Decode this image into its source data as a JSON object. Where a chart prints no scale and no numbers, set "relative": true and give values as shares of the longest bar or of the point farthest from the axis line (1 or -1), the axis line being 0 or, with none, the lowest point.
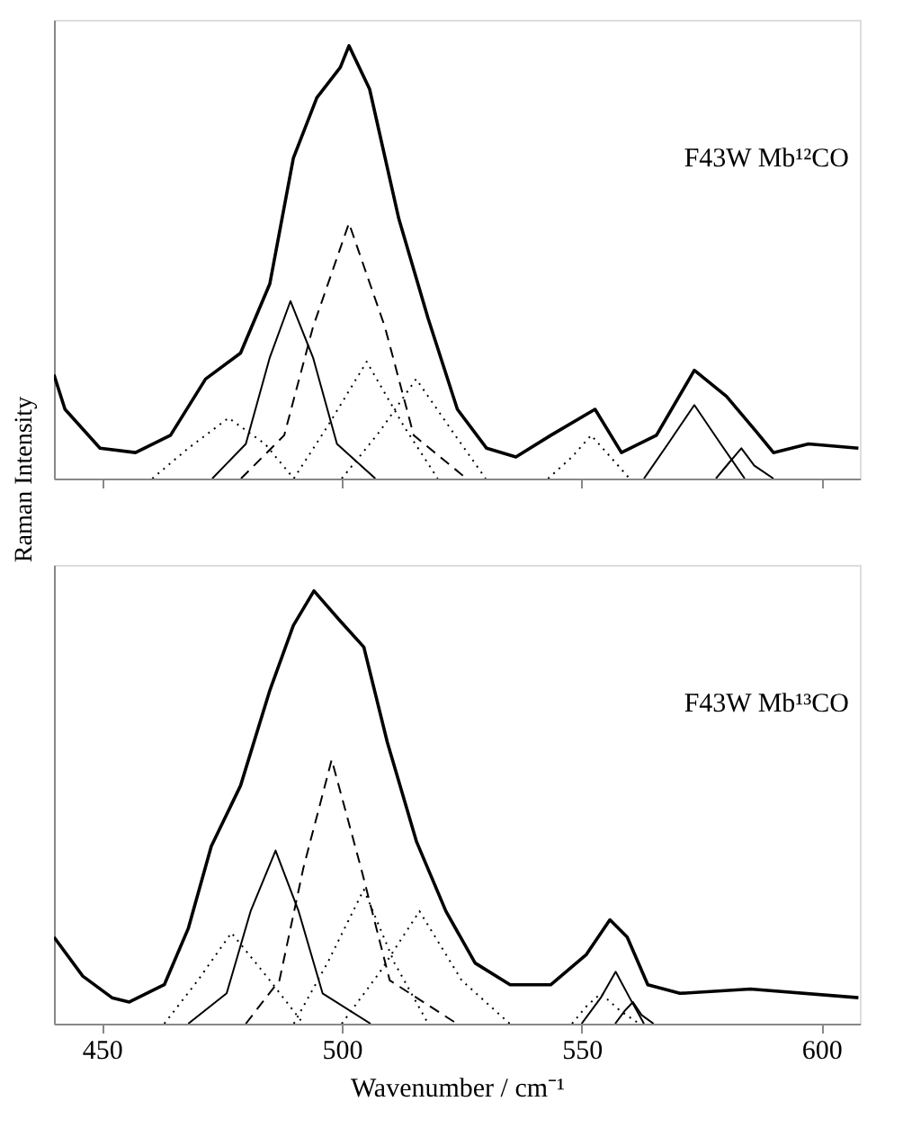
{
  "chart_data": [
    {
      "type": "line",
      "relative": true,
      "ylabel": "Raman Intensity",
      "xlim": [
        440,
        608
      ],
      "xticks": [
        450,
        500,
        550,
        600
      ],
      "tick_labels": false,
      "annotations": [
        "F43W Mb¹²CO"
      ],
      "series": [
        {
          "color": "#000000",
          "line_style": "solid",
          "x": [
            440,
            442.3,
            449.6,
            457,
            464.3,
            471.6,
            478.9,
            485,
            489.9,
            494.8,
            499.7,
            501.5,
            505.8,
            511.9,
            518,
            524.1,
            530.2,
            536.3,
            543.6,
            552.8,
            558.3,
            565.6,
            573.5,
            580.2,
            586.3,
            590,
            597.3,
            607.7
          ],
          "values": [
            0.24,
            0.16,
            0.07,
            0.06,
            0.1,
            0.23,
            0.29,
            0.45,
            0.74,
            0.88,
            0.95,
            1.0,
            0.9,
            0.6,
            0.37,
            0.16,
            0.07,
            0.05,
            0.1,
            0.16,
            0.06,
            0.1,
            0.25,
            0.19,
            0.11,
            0.06,
            0.08,
            0.07
          ]
        },
        {
          "color": "#000000",
          "line_style": "dotted",
          "x": [
            460.5,
            468,
            476.4,
            484,
            490
          ],
          "values": [
            0,
            0.07,
            0.14,
            0.08,
            0
          ]
        },
        {
          "color": "#000000",
          "line_style": "solid",
          "x": [
            473,
            480,
            485,
            489.3,
            494,
            499,
            507
          ],
          "values": [
            0,
            0.08,
            0.28,
            0.41,
            0.28,
            0.08,
            0
          ]
        },
        {
          "color": "#000000",
          "line_style": "dashed",
          "x": [
            479,
            488,
            494,
            501.5,
            509,
            515,
            526
          ],
          "values": [
            0,
            0.1,
            0.35,
            0.59,
            0.35,
            0.1,
            0
          ]
        },
        {
          "color": "#000000",
          "line_style": "dotted",
          "x": [
            490,
            497,
            505.2,
            513,
            520
          ],
          "values": [
            0,
            0.12,
            0.27,
            0.12,
            0
          ]
        },
        {
          "color": "#000000",
          "line_style": "dotted",
          "x": [
            500,
            508,
            515.5,
            523,
            530
          ],
          "values": [
            0,
            0.11,
            0.23,
            0.11,
            0
          ]
        },
        {
          "color": "#000000",
          "line_style": "dotted",
          "x": [
            543,
            548,
            552,
            556,
            560
          ],
          "values": [
            0,
            0.05,
            0.1,
            0.05,
            0
          ]
        },
        {
          "color": "#000000",
          "line_style": "solid",
          "x": [
            563,
            568,
            573.5,
            579,
            584
          ],
          "values": [
            0,
            0.08,
            0.17,
            0.08,
            0
          ]
        },
        {
          "color": "#000000",
          "line_style": "solid",
          "x": [
            578,
            581,
            583.3,
            586,
            590
          ],
          "values": [
            0,
            0.04,
            0.07,
            0.03,
            0
          ]
        }
      ]
    },
    {
      "type": "line",
      "relative": true,
      "xlabel": "Wavenumber / cm⁻¹",
      "xlim": [
        440,
        608
      ],
      "xticks": [
        450,
        500,
        550,
        600
      ],
      "annotations": [
        "F43W Mb¹³CO"
      ],
      "series": [
        {
          "color": "#000000",
          "line_style": "solid",
          "x": [
            440,
            446,
            452.1,
            455.7,
            463,
            468,
            472.8,
            478.9,
            485,
            489.9,
            494.2,
            499.7,
            504.6,
            509.5,
            515.6,
            521.7,
            527.8,
            535.1,
            543.6,
            551,
            555.9,
            559.5,
            563.8,
            570.5,
            585.2,
            607.7
          ],
          "values": [
            0.2,
            0.11,
            0.06,
            0.05,
            0.09,
            0.22,
            0.41,
            0.55,
            0.77,
            0.92,
            1.0,
            0.93,
            0.87,
            0.65,
            0.42,
            0.26,
            0.14,
            0.09,
            0.09,
            0.16,
            0.24,
            0.2,
            0.09,
            0.07,
            0.08,
            0.06
          ]
        },
        {
          "color": "#000000",
          "line_style": "dotted",
          "x": [
            463,
            470,
            477,
            485,
            492
          ],
          "values": [
            0,
            0.1,
            0.21,
            0.1,
            0
          ]
        },
        {
          "color": "#000000",
          "line_style": "solid",
          "x": [
            468,
            476,
            481,
            486.2,
            491,
            496,
            506
          ],
          "values": [
            0,
            0.07,
            0.26,
            0.4,
            0.26,
            0.07,
            0
          ]
        },
        {
          "color": "#000000",
          "line_style": "dashed",
          "x": [
            480,
            487,
            492,
            497.9,
            504,
            510,
            524
          ],
          "values": [
            0,
            0.1,
            0.36,
            0.61,
            0.36,
            0.1,
            0
          ]
        },
        {
          "color": "#000000",
          "line_style": "dotted",
          "x": [
            490,
            497,
            504.6,
            511,
            518
          ],
          "values": [
            0,
            0.14,
            0.31,
            0.14,
            0
          ]
        },
        {
          "color": "#000000",
          "line_style": "dotted",
          "x": [
            500,
            508,
            516.2,
            525,
            535
          ],
          "values": [
            0,
            0.12,
            0.26,
            0.1,
            0
          ]
        },
        {
          "color": "#000000",
          "line_style": "dotted",
          "x": [
            548,
            551,
            554,
            558,
            562
          ],
          "values": [
            0,
            0.04,
            0.07,
            0.03,
            0
          ]
        },
        {
          "color": "#000000",
          "line_style": "solid",
          "x": [
            550,
            554,
            557.1,
            560,
            563
          ],
          "values": [
            0,
            0.06,
            0.12,
            0.06,
            0
          ]
        },
        {
          "color": "#000000",
          "line_style": "solid",
          "x": [
            557,
            559,
            560.7,
            562.5,
            565
          ],
          "values": [
            0,
            0.03,
            0.05,
            0.02,
            0
          ]
        }
      ]
    }
  ]
}
